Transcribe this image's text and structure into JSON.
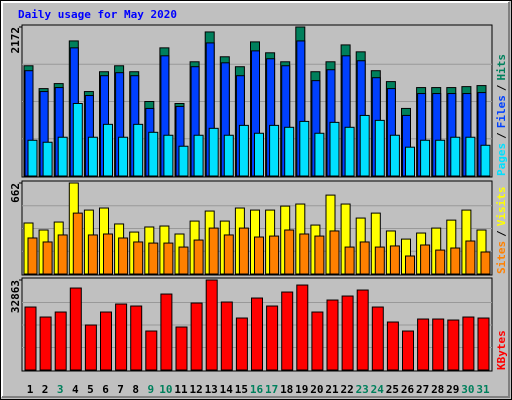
{
  "title": "Daily usage for May 2020",
  "legend_separator": "/",
  "chart_data": [
    {
      "type": "bar",
      "ylim": [
        0,
        2172
      ],
      "yticks": [
        2172
      ],
      "series": [
        {
          "name": "Hits",
          "color": "#00805c",
          "values": [
            1607,
            1274,
            1347,
            1969,
            1231,
            1520,
            1607,
            1520,
            1086,
            1868,
            1057,
            1665,
            2100,
            1738,
            1593,
            1955,
            1796,
            1665,
            2172,
            1520,
            1665,
            1911,
            1810,
            1535,
            1376,
            985,
            1289,
            1289,
            1289,
            1303,
            1318
          ]
        },
        {
          "name": "Files",
          "color": "#0040ff",
          "values": [
            1535,
            1231,
            1289,
            1868,
            1173,
            1462,
            1506,
            1462,
            985,
            1752,
            1014,
            1593,
            1940,
            1650,
            1462,
            1824,
            1709,
            1607,
            1969,
            1390,
            1549,
            1752,
            1680,
            1433,
            1274,
            883,
            1202,
            1202,
            1202,
            1202,
            1216
          ]
        },
        {
          "name": "Pages",
          "color": "#00e0ff",
          "values": [
            521,
            492,
            565,
            1057,
            565,
            753,
            565,
            753,
            637,
            594,
            434,
            594,
            695,
            594,
            738,
            623,
            738,
            710,
            796,
            623,
            782,
            710,
            883,
            811,
            594,
            420,
            521,
            521,
            565,
            565,
            448
          ]
        }
      ]
    },
    {
      "type": "bar",
      "ylim": [
        0,
        662
      ],
      "yticks": [
        662
      ],
      "series": [
        {
          "name": "Visits",
          "color": "#ffff00",
          "values": [
            371,
            320,
            378,
            662,
            465,
            480,
            364,
            305,
            342,
            349,
            291,
            385,
            458,
            385,
            480,
            465,
            465,
            494,
            509,
            356,
            574,
            509,
            407,
            443,
            313,
            254,
            298,
            334,
            392,
            465,
            320
          ]
        },
        {
          "name": "Sites",
          "color": "#ff8000",
          "values": [
            262,
            233,
            284,
            443,
            284,
            291,
            262,
            233,
            225,
            225,
            196,
            247,
            334,
            284,
            334,
            269,
            276,
            320,
            291,
            276,
            313,
            196,
            233,
            196,
            204,
            131,
            211,
            174,
            189,
            240,
            160
          ]
        }
      ]
    },
    {
      "type": "bar",
      "ylim": [
        0,
        32863
      ],
      "yticks": [
        32863
      ],
      "categories": [
        "1",
        "2",
        "3",
        "4",
        "5",
        "6",
        "7",
        "8",
        "9",
        "10",
        "11",
        "12",
        "13",
        "14",
        "15",
        "16",
        "17",
        "18",
        "19",
        "20",
        "21",
        "22",
        "23",
        "24",
        "25",
        "26",
        "27",
        "28",
        "29",
        "30",
        "31"
      ],
      "category_colors": [
        "#000000",
        "#000000",
        "#00805c",
        "#000000",
        "#000000",
        "#000000",
        "#000000",
        "#000000",
        "#00805c",
        "#00805c",
        "#000000",
        "#000000",
        "#000000",
        "#000000",
        "#000000",
        "#00805c",
        "#00805c",
        "#000000",
        "#000000",
        "#000000",
        "#000000",
        "#000000",
        "#00805c",
        "#00805c",
        "#000000",
        "#000000",
        "#000000",
        "#000000",
        "#000000",
        "#00805c",
        "#00805c"
      ],
      "series": [
        {
          "name": "KBytes",
          "color": "#ff0000",
          "values": [
            22995,
            19345,
            21170,
            29930,
            16425,
            21170,
            24090,
            23360,
            14235,
            27740,
            15695,
            24455,
            32863,
            24820,
            18980,
            26280,
            23360,
            28470,
            31025,
            21170,
            25550,
            27010,
            29200,
            22995,
            17520,
            14235,
            18615,
            18615,
            18250,
            19345,
            18980
          ]
        }
      ]
    }
  ]
}
